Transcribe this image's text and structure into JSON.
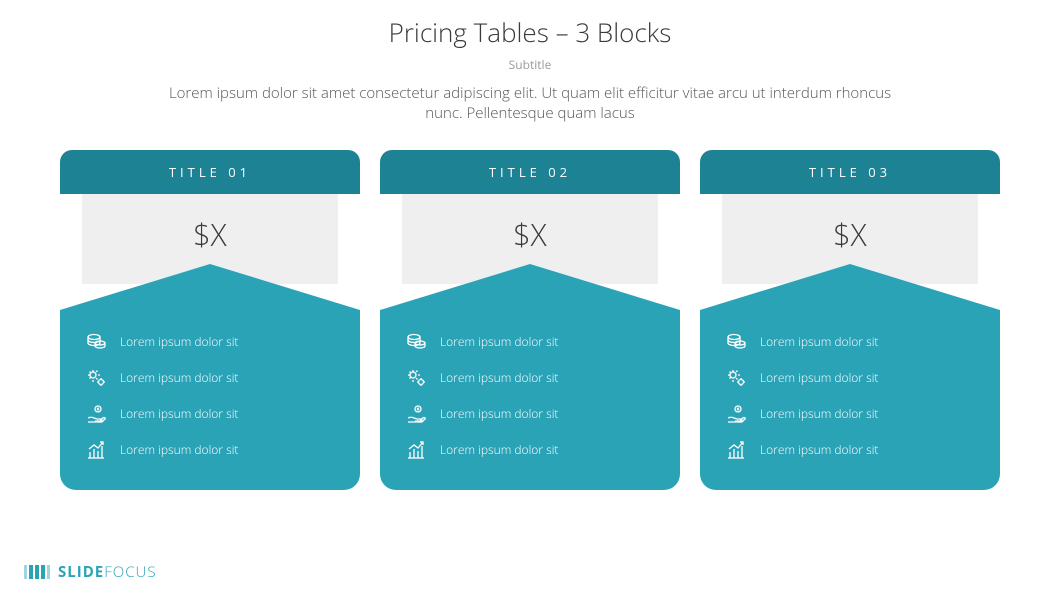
{
  "header": {
    "title": "Pricing Tables – 3 Blocks",
    "subtitle": "Subtitle",
    "description": "Lorem ipsum dolor sit amet consectetur adipiscing elit. Ut quam elit efficitur vitae arcu ut interdum rhoncus nunc. Pellentesque quam lacus"
  },
  "colors": {
    "header_dark": "#1d8294",
    "body_teal": "#2aa3b7",
    "price_bg": "#efefef",
    "text_dark": "#3a3a3a"
  },
  "cards": [
    {
      "title": "TITLE 01",
      "price": "$X",
      "features": [
        {
          "icon": "coins-icon",
          "label": "Lorem ipsum dolor sit"
        },
        {
          "icon": "gears-icon",
          "label": "Lorem ipsum dolor sit"
        },
        {
          "icon": "hand-coin-icon",
          "label": "Lorem ipsum dolor sit"
        },
        {
          "icon": "chart-up-icon",
          "label": "Lorem ipsum dolor sit"
        }
      ]
    },
    {
      "title": "TITLE 02",
      "price": "$X",
      "features": [
        {
          "icon": "coins-icon",
          "label": "Lorem ipsum dolor sit"
        },
        {
          "icon": "gears-icon",
          "label": "Lorem ipsum dolor sit"
        },
        {
          "icon": "hand-coin-icon",
          "label": "Lorem ipsum dolor sit"
        },
        {
          "icon": "chart-up-icon",
          "label": "Lorem ipsum dolor sit"
        }
      ]
    },
    {
      "title": "TITLE 03",
      "price": "$X",
      "features": [
        {
          "icon": "coins-icon",
          "label": "Lorem ipsum dolor sit"
        },
        {
          "icon": "gears-icon",
          "label": "Lorem ipsum dolor sit"
        },
        {
          "icon": "hand-coin-icon",
          "label": "Lorem ipsum dolor sit"
        },
        {
          "icon": "chart-up-icon",
          "label": "Lorem ipsum dolor sit"
        }
      ]
    }
  ],
  "brand": {
    "bold": "SLIDE",
    "light": "FOCUS"
  }
}
